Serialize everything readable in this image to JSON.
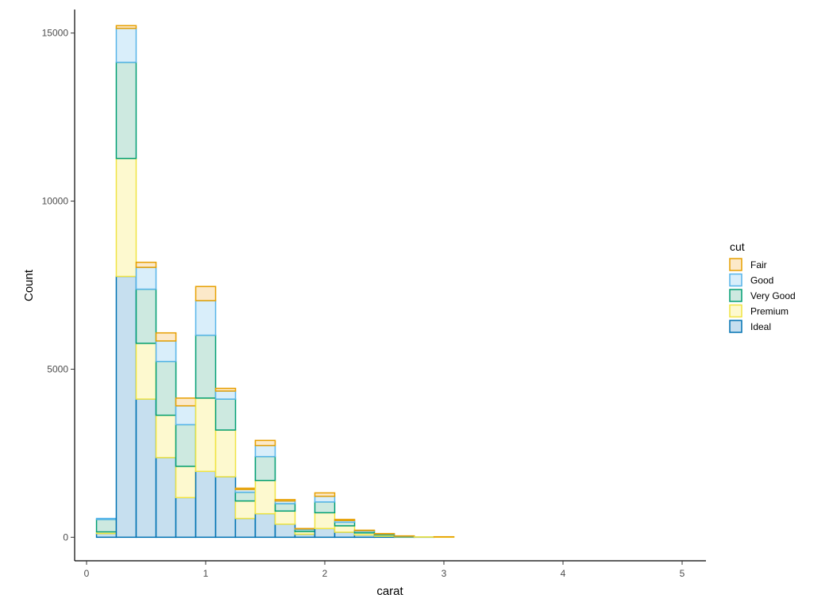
{
  "chart_data": {
    "type": "bar",
    "stacked": true,
    "xlabel": "carat",
    "ylabel": "Count",
    "xlim": [
      -0.1,
      5.2
    ],
    "ylim": [
      -700,
      15700
    ],
    "xticks": [
      0,
      1,
      2,
      3,
      4,
      5
    ],
    "yticks": [
      0,
      5000,
      10000,
      15000
    ],
    "grid": false,
    "legend": {
      "title": "cut",
      "position": "right"
    },
    "bin_width": 0.1667,
    "bin_centers": [
      0.167,
      0.333,
      0.5,
      0.667,
      0.833,
      1.0,
      1.167,
      1.333,
      1.5,
      1.667,
      1.833,
      2.0,
      2.167,
      2.333,
      2.5,
      2.667,
      2.833,
      3.0,
      3.167,
      3.333,
      3.5,
      3.667,
      3.833,
      4.0,
      4.167,
      4.333,
      4.5,
      4.667,
      4.833,
      5.0
    ],
    "series": [
      {
        "name": "Ideal",
        "fill": "#c6dfef",
        "stroke": "#0072b2",
        "values": [
          110,
          7760,
          4110,
          2370,
          1180,
          1960,
          1800,
          560,
          700,
          390,
          90,
          260,
          150,
          70,
          30,
          10,
          5,
          0,
          0,
          0,
          0,
          0,
          0,
          0,
          0,
          0,
          0,
          0,
          0,
          0
        ]
      },
      {
        "name": "Premium",
        "fill": "#fdf9cf",
        "stroke": "#f0e442",
        "values": [
          50,
          3510,
          1660,
          1260,
          930,
          2180,
          1390,
          520,
          990,
          390,
          80,
          470,
          190,
          60,
          40,
          10,
          5,
          10,
          0,
          0,
          0,
          0,
          0,
          0,
          0,
          0,
          0,
          0,
          0,
          0
        ]
      },
      {
        "name": "Very Good",
        "fill": "#cde9e0",
        "stroke": "#009e73",
        "values": [
          370,
          2860,
          1610,
          1600,
          1240,
          1870,
          920,
          260,
          710,
          220,
          60,
          320,
          110,
          50,
          20,
          10,
          0,
          0,
          0,
          0,
          0,
          0,
          0,
          0,
          0,
          0,
          0,
          0,
          0,
          0
        ]
      },
      {
        "name": "Good",
        "fill": "#d9eefa",
        "stroke": "#56b4e9",
        "values": [
          30,
          1010,
          650,
          610,
          560,
          1030,
          240,
          80,
          330,
          80,
          20,
          170,
          50,
          20,
          10,
          5,
          0,
          0,
          0,
          0,
          0,
          0,
          0,
          0,
          0,
          0,
          0,
          0,
          0,
          0
        ]
      },
      {
        "name": "Fair",
        "fill": "#fce9c9",
        "stroke": "#e69f00",
        "values": [
          0,
          80,
          150,
          240,
          230,
          420,
          80,
          40,
          150,
          40,
          10,
          100,
          30,
          10,
          10,
          5,
          0,
          5,
          0,
          0,
          0,
          0,
          0,
          0,
          0,
          0,
          0,
          0,
          0,
          0
        ]
      }
    ]
  }
}
